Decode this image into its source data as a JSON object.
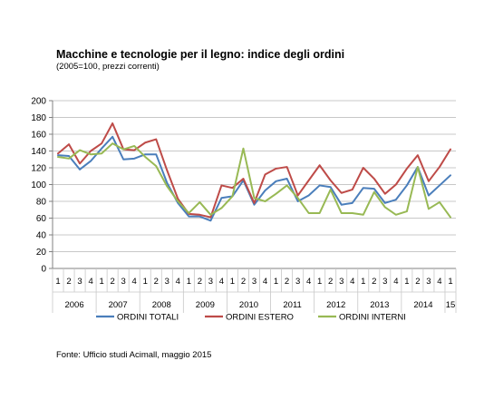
{
  "header": {
    "title": "Macchine e tecnologie per il legno: indice degli ordini",
    "subtitle": "(2005=100, prezzi correnti)"
  },
  "footer": {
    "source": "Fonte: Ufficio studi Acimall, maggio 2015"
  },
  "chart_data": {
    "type": "line",
    "title": "Macchine e tecnologie per il legno: indice degli ordini",
    "subtitle": "(2005=100, prezzi correnti)",
    "xlabel": "",
    "ylabel": "",
    "ylim": [
      0,
      200
    ],
    "ytick_step": 20,
    "grid": "horizontal",
    "legend_position": "bottom",
    "quarters": [
      "1",
      "2",
      "3",
      "4",
      "1",
      "2",
      "3",
      "4",
      "1",
      "2",
      "3",
      "4",
      "1",
      "2",
      "3",
      "4",
      "1",
      "2",
      "3",
      "4",
      "1",
      "2",
      "3",
      "4",
      "1",
      "2",
      "3",
      "4",
      "1",
      "2",
      "3",
      "4",
      "1",
      "2",
      "3",
      "4",
      "1"
    ],
    "years": [
      {
        "label": "2006",
        "quarters": 4
      },
      {
        "label": "2007",
        "quarters": 4
      },
      {
        "label": "2008",
        "quarters": 4
      },
      {
        "label": "2009",
        "quarters": 4
      },
      {
        "label": "2010",
        "quarters": 4
      },
      {
        "label": "2011",
        "quarters": 4
      },
      {
        "label": "2012",
        "quarters": 4
      },
      {
        "label": "2013",
        "quarters": 4
      },
      {
        "label": "2014",
        "quarters": 4
      },
      {
        "label": "15",
        "quarters": 1
      }
    ],
    "series": [
      {
        "name": "ORDINI TOTALI",
        "color": "#4a7ebb",
        "values": [
          135,
          134,
          118,
          128,
          143,
          157,
          130,
          131,
          136,
          136,
          102,
          78,
          62,
          62,
          57,
          84,
          86,
          105,
          76,
          93,
          104,
          107,
          80,
          87,
          99,
          97,
          76,
          78,
          96,
          95,
          78,
          82,
          99,
          121,
          87,
          99,
          111
        ]
      },
      {
        "name": "ORDINI ESTERO",
        "color": "#be4b48",
        "values": [
          137,
          148,
          125,
          140,
          149,
          173,
          142,
          141,
          150,
          154,
          117,
          83,
          65,
          64,
          61,
          99,
          96,
          107,
          78,
          112,
          119,
          121,
          87,
          105,
          123,
          105,
          90,
          94,
          120,
          107,
          89,
          100,
          119,
          135,
          104,
          121,
          142
        ]
      },
      {
        "name": "ORDINI INTERNI",
        "color": "#98b954",
        "values": [
          133,
          131,
          141,
          136,
          137,
          149,
          142,
          146,
          133,
          122,
          98,
          80,
          66,
          79,
          64,
          72,
          86,
          143,
          84,
          80,
          89,
          99,
          84,
          66,
          66,
          94,
          66,
          66,
          64,
          91,
          73,
          64,
          68,
          121,
          71,
          79,
          61
        ]
      }
    ]
  }
}
